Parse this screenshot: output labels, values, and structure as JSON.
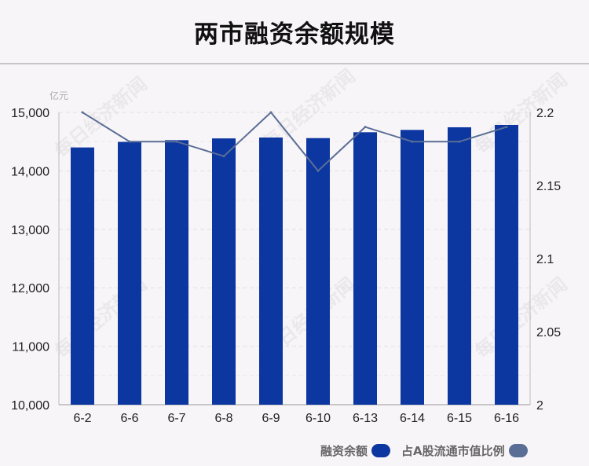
{
  "title": "两市融资余额规模",
  "unit_label": "亿元",
  "watermark_text": "每日经济新闻",
  "legend": {
    "bar_label": "融资余额",
    "line_label": "占A股流通市值比例"
  },
  "colors": {
    "bar": "#0c36a0",
    "line": "#5a6e96",
    "line_swatch": "#5a6e96"
  },
  "chart_data": {
    "type": "bar",
    "categories": [
      "6-2",
      "6-6",
      "6-7",
      "6-8",
      "6-9",
      "6-10",
      "6-13",
      "6-14",
      "6-15",
      "6-16"
    ],
    "series": [
      {
        "name": "融资余额",
        "type": "bar",
        "axis": "left",
        "values": [
          14400,
          14495,
          14525,
          14555,
          14570,
          14560,
          14660,
          14700,
          14745,
          14785
        ]
      },
      {
        "name": "占A股流通市值比例",
        "type": "line",
        "axis": "right",
        "values": [
          2.2,
          2.18,
          2.18,
          2.17,
          2.2,
          2.16,
          2.19,
          2.18,
          2.18,
          2.19
        ]
      }
    ],
    "y_left": {
      "min": 10000,
      "max": 15000,
      "ticks": [
        10000,
        11000,
        12000,
        13000,
        14000,
        15000
      ],
      "tick_labels": [
        "10,000",
        "11,000",
        "12,000",
        "13,000",
        "14,000",
        "15,000"
      ]
    },
    "y_right": {
      "min": 2,
      "max": 2.2,
      "ticks": [
        2,
        2.05,
        2.1,
        2.15,
        2.2
      ],
      "tick_labels": [
        "2",
        "2.05",
        "2.1",
        "2.15",
        "2.2"
      ]
    },
    "grid": true,
    "legend_position": "bottom-right"
  }
}
